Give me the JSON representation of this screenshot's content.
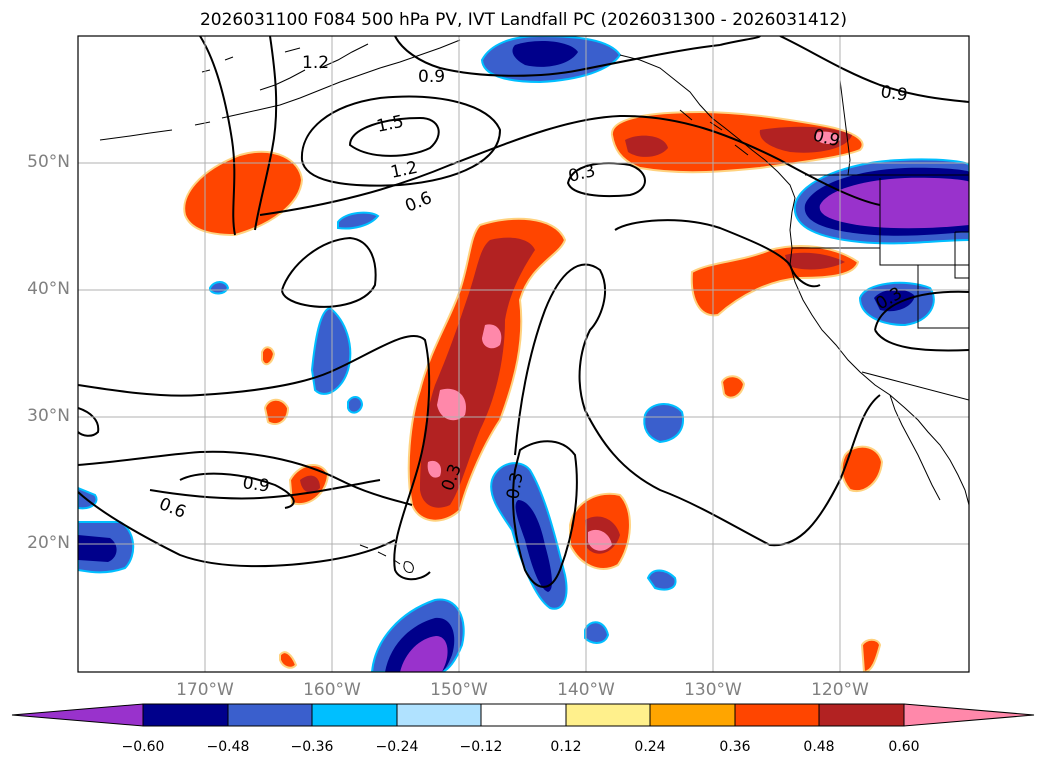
{
  "figure": {
    "title": "2026031100 F084 500 hPa PV, IVT Landfall PC (2026031300 - 2026031412)"
  },
  "map": {
    "lat_ticks": [
      "50°N",
      "40°N",
      "30°N",
      "20°N"
    ],
    "lon_ticks": [
      "170°W",
      "160°W",
      "150°W",
      "140°W",
      "130°W",
      "120°W"
    ],
    "contour_labels": [
      "1.2",
      "0.9",
      "1.5",
      "1.2",
      "0.6",
      "0.3",
      "0.9",
      "0.9",
      "0.6",
      "0.9",
      "0.3",
      "0.3",
      "0.3"
    ]
  },
  "colorbar": {
    "tick_labels": [
      "−0.60",
      "−0.48",
      "−0.36",
      "−0.24",
      "−0.12",
      "0.12",
      "0.24",
      "0.36",
      "0.48",
      "0.60"
    ],
    "colors": [
      "#9932cc",
      "#00008b",
      "#3a5fcd",
      "#00bfff",
      "#b0e2ff",
      "#ffffff",
      "#fff08c",
      "#ffa500",
      "#ff4500",
      "#b22222",
      "#ff88aa"
    ]
  }
}
